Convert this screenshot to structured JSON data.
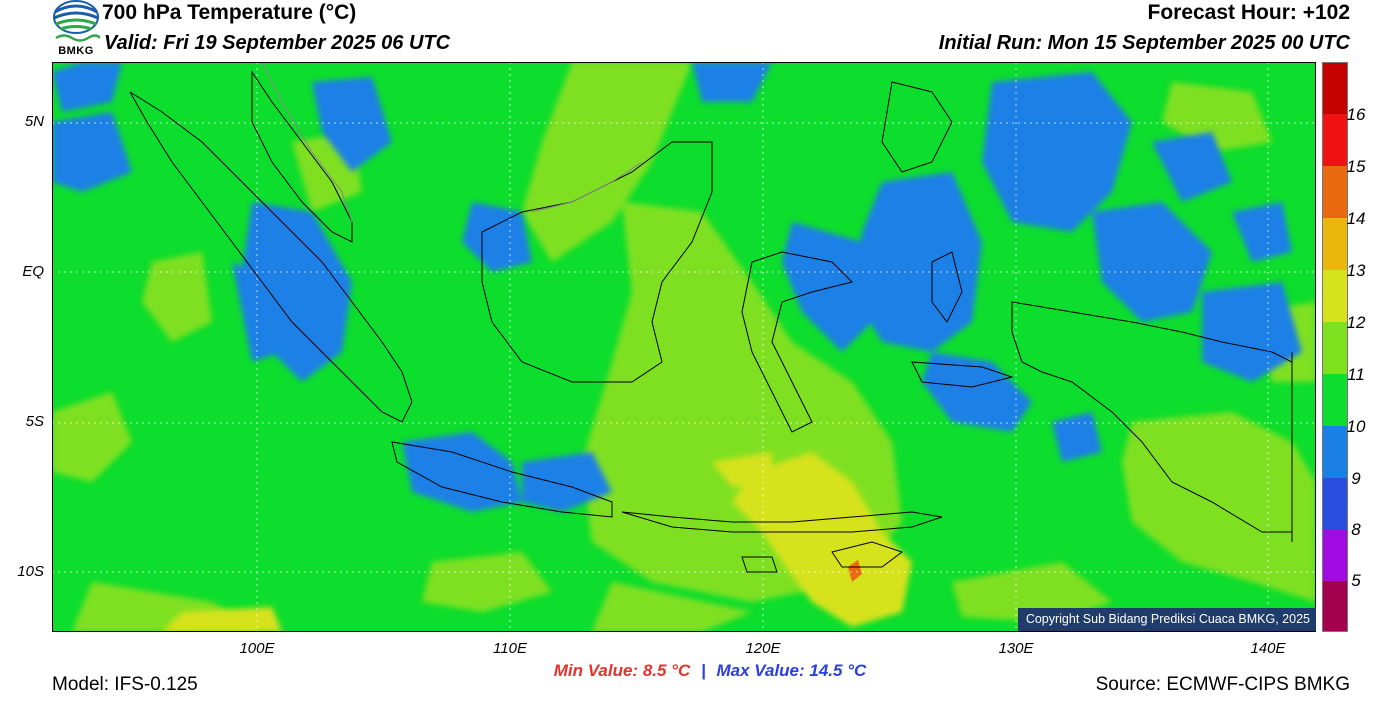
{
  "header": {
    "title": "700 hPa Temperature (°C)",
    "valid": "Valid: Fri 19 September 2025 06 UTC",
    "forecast_hour": "Forecast Hour: +102",
    "initial_run": "Initial Run: Mon 15 September 2025 00 UTC"
  },
  "logo": {
    "text": "BMKG",
    "icon": "bmkg-logo-icon"
  },
  "map": {
    "lat_labels": [
      "5N",
      "EQ",
      "5S",
      "10S"
    ],
    "lon_labels": [
      "100E",
      "110E",
      "120E",
      "130E",
      "140E"
    ],
    "copyright": "Copyright Sub Bidang Prediksi Cuaca BMKG, 2025",
    "field_colors": {
      "t9": "#1a80e6",
      "t10": "#0ddd2c",
      "t11": "#7fe020",
      "t12": "#d6e21c"
    }
  },
  "colorbar": {
    "labels": [
      "16",
      "15",
      "14",
      "13",
      "12",
      "11",
      "10",
      "9",
      "8",
      "5"
    ],
    "colors": [
      "#c50000",
      "#f01212",
      "#ea6a10",
      "#e8b60c",
      "#d6e21c",
      "#7fe020",
      "#0ddd2c",
      "#1a80e6",
      "#2a4ee0",
      "#a10ae0",
      "#a40050"
    ]
  },
  "stats": {
    "min": "Min Value: 8.5 °C",
    "separator": "|",
    "max": "Max Value: 14.5 °C"
  },
  "footer": {
    "model": "Model: IFS-0.125",
    "source": "Source: ECMWF-CIPS BMKG"
  }
}
